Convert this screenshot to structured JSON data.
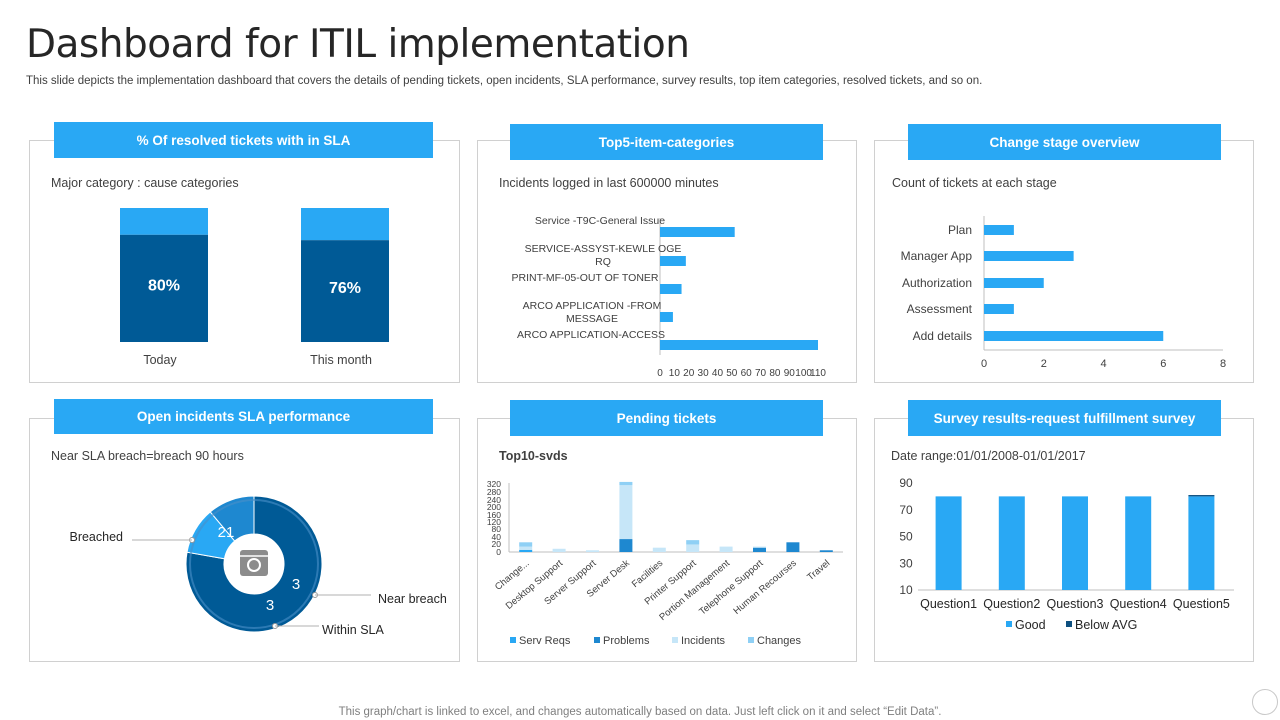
{
  "page": {
    "title": "Dashboard for ITIL implementation",
    "subtitle": "This slide depicts the implementation dashboard that covers the details of pending tickets, open incidents, SLA performance, survey results, top item categories, resolved tickets, and so on.",
    "footer": "This graph/chart is linked to excel, and changes automatically based on data. Just left click on it and select “Edit Data”."
  },
  "colors": {
    "accent": "#29a8f4",
    "dark": "#005a96",
    "mid": "#1e88d0",
    "light": "#b3ddf5",
    "lighter": "#8fd0f5"
  },
  "panels": {
    "resolved": {
      "header": "% Of resolved tickets with in SLA",
      "caption": "Major category : cause categories"
    },
    "top5": {
      "header": "Top5-item-categories",
      "caption": "Incidents logged in last 600000  minutes"
    },
    "change": {
      "header": "Change stage overview",
      "caption": "Count of tickets at each stage"
    },
    "incidents": {
      "header": "Open incidents SLA performance",
      "caption": "Near SLA breach=breach  90 hours"
    },
    "pending": {
      "header": "Pending tickets",
      "caption": "Top10-svds"
    },
    "survey": {
      "header": "Survey results-request  fulfillment survey",
      "caption": "Date range:01/01/2008-01/01/2017"
    }
  },
  "chart_data": [
    {
      "id": "resolved",
      "type": "bar",
      "stacked": true,
      "categories": [
        "Today",
        "This month"
      ],
      "values": [
        80,
        76
      ],
      "value_labels": [
        "80%",
        "76%"
      ],
      "ylim": [
        0,
        100
      ]
    },
    {
      "id": "top5",
      "type": "bar",
      "orientation": "horizontal",
      "categories": [
        "Service -T9C-General Issue",
        "SERVICE-ASSYST-KEWLE OGE RQ",
        "PRINT-MF-05-OUT OF TONER",
        "ARCO APPLICATION -FROM MESSAGE",
        "ARCO APPLICATION-ACCESS"
      ],
      "category_lines": [
        [
          "Service -T9C-General Issue"
        ],
        [
          "SERVICE-ASSYST-KEWLE OGE",
          "RQ"
        ],
        [
          "PRINT-MF-05-OUT OF TONER"
        ],
        [
          "ARCO APPLICATION -FROM",
          "MESSAGE"
        ],
        [
          "ARCO APPLICATION-ACCESS"
        ]
      ],
      "values": [
        52,
        18,
        15,
        9,
        110
      ],
      "xlim": [
        0,
        110
      ],
      "xticks": [
        "0",
        "10",
        "20",
        "30",
        "40",
        "50",
        "60",
        "70",
        "80",
        "90",
        "100",
        "110"
      ]
    },
    {
      "id": "change",
      "type": "bar",
      "orientation": "horizontal",
      "categories": [
        "Plan",
        "Manager App",
        "Authorization",
        "Assessment",
        "Add details"
      ],
      "values": [
        1,
        3,
        2,
        1,
        6
      ],
      "xlim": [
        0,
        8
      ],
      "xticks": [
        "0",
        "2",
        "4",
        "6",
        "8"
      ]
    },
    {
      "id": "incidents",
      "type": "pie",
      "donut": true,
      "slices": [
        {
          "name": "Breached",
          "value": 21
        },
        {
          "name": "Near breach",
          "value": 3
        },
        {
          "name": "Within SLA",
          "value": 3
        }
      ],
      "labels": [
        "Breached",
        "Near breach",
        "Within SLA"
      ]
    },
    {
      "id": "pending",
      "type": "bar",
      "stacked": true,
      "categories": [
        "Change...",
        "Desktop Support",
        "Server Support",
        "Server Desk",
        "Facilities",
        "Printer Support",
        "Portion Management",
        "Telephone Support",
        "Human Recourses",
        "Travel"
      ],
      "series": [
        {
          "name": "Serv Reqs",
          "values": [
            10,
            0,
            0,
            0,
            0,
            0,
            0,
            0,
            0,
            0
          ]
        },
        {
          "name": "Problems",
          "values": [
            0,
            0,
            0,
            60,
            0,
            0,
            0,
            20,
            45,
            8
          ]
        },
        {
          "name": "Incidents",
          "values": [
            15,
            15,
            8,
            250,
            20,
            35,
            25,
            5,
            0,
            0
          ]
        },
        {
          "name": "Changes",
          "values": [
            20,
            0,
            0,
            15,
            0,
            20,
            0,
            0,
            0,
            0
          ]
        }
      ],
      "ylim": [
        0,
        320
      ],
      "yticks": [
        "0",
        "20",
        "40",
        "80",
        "120",
        "160",
        "200",
        "240",
        "280",
        "320"
      ]
    },
    {
      "id": "survey",
      "type": "bar",
      "stacked": true,
      "categories": [
        "Question1",
        "Question2",
        "Question3",
        "Question4",
        "Question5"
      ],
      "series": [
        {
          "name": "Good",
          "values": [
            80,
            80,
            80,
            80,
            80
          ]
        },
        {
          "name": "Below AVG",
          "values": [
            0,
            0,
            0,
            0,
            1
          ]
        }
      ],
      "ylim": [
        10,
        90
      ],
      "yticks": [
        "10",
        "30",
        "50",
        "70",
        "90"
      ]
    }
  ]
}
